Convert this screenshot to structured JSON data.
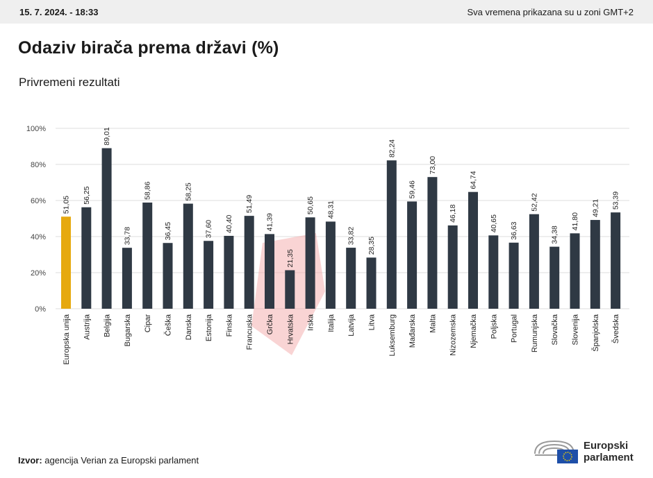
{
  "header": {
    "datetime": "15. 7. 2024. - 18:33",
    "timezone_note": "Sva vremena prikazana su u zoni GMT+2"
  },
  "chart_data": {
    "type": "bar",
    "title": "Odaziv birača prema državi (%)",
    "subtitle": "Privremeni rezultati",
    "categories": [
      "Europska unija",
      "Austrija",
      "Belgija",
      "Bugarska",
      "Cipar",
      "Češka",
      "Danska",
      "Estonija",
      "Finska",
      "Francuska",
      "Grčka",
      "Hrvatska",
      "Irska",
      "Italija",
      "Latvija",
      "Litva",
      "Luksemburg",
      "Mađarska",
      "Malta",
      "Nizozemska",
      "Njemačka",
      "Poljska",
      "Portugal",
      "Rumunjska",
      "Slovačka",
      "Slovenija",
      "Španjolska",
      "Švedska"
    ],
    "values": [
      51.05,
      56.25,
      89.01,
      33.78,
      58.86,
      36.45,
      58.25,
      37.6,
      40.4,
      51.49,
      41.39,
      21.35,
      50.65,
      48.31,
      33.82,
      28.35,
      82.24,
      59.46,
      73.0,
      46.18,
      64.74,
      40.65,
      36.63,
      52.42,
      34.38,
      41.8,
      49.21,
      53.39
    ],
    "value_labels": [
      "51,05",
      "56,25",
      "89,01",
      "33,78",
      "58,86",
      "36,45",
      "58,25",
      "37,60",
      "40,40",
      "51,49",
      "41,39",
      "21,35",
      "50,65",
      "48,31",
      "33,82",
      "28,35",
      "82,24",
      "59,46",
      "73,00",
      "46,18",
      "64,74",
      "40,65",
      "36,63",
      "52,42",
      "34,38",
      "41,80",
      "49,21",
      "53,39"
    ],
    "yticks": [
      "0%",
      "20%",
      "40%",
      "60%",
      "80%",
      "100%"
    ],
    "ylim": [
      0,
      100
    ],
    "grid": true,
    "colors": {
      "highlight": "#e6a90f",
      "bar": "#2f3944",
      "grid": "#dcdcdc",
      "region_marker": "#f2a0a0"
    },
    "highlight_index": 0
  },
  "footer": {
    "source_label": "Izvor:",
    "source_text": " agencija Verian za Europski parlament"
  },
  "logo": {
    "line1": "Europski",
    "line2": "parlament"
  }
}
